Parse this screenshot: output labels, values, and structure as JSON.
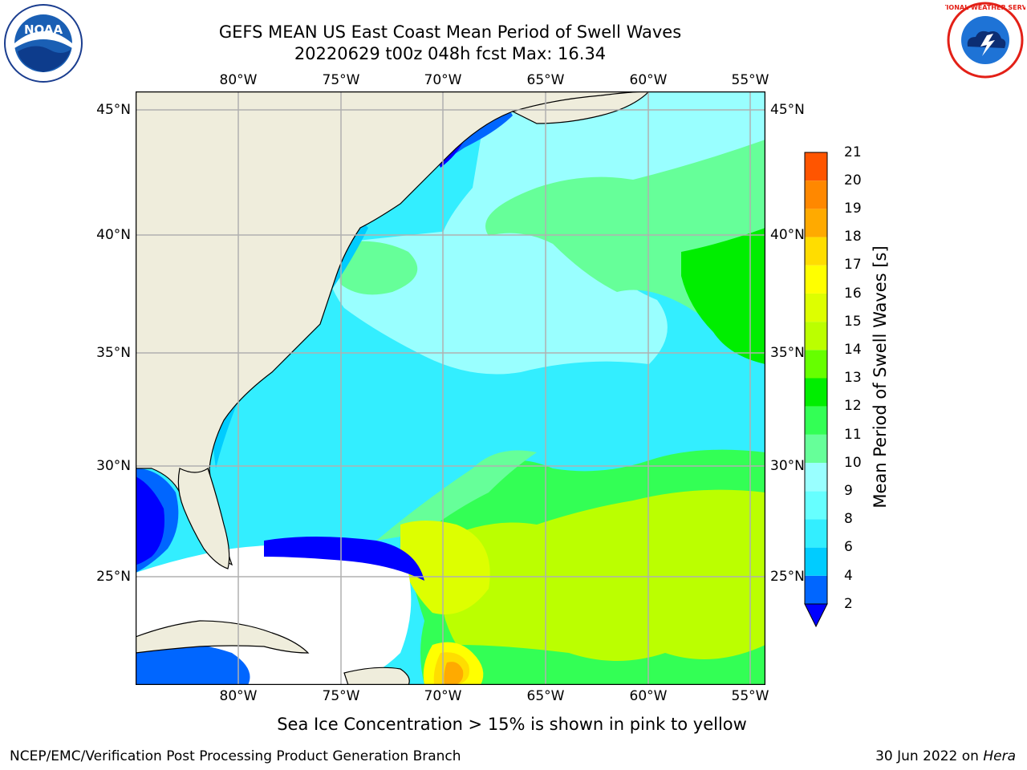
{
  "title": {
    "line1": "GEFS MEAN US East Coast Mean Period of Swell Waves",
    "line2": "20220629 t00z 048h fcst   Max: 16.34"
  },
  "map": {
    "lon_ticks": [
      "80°W",
      "75°W",
      "70°W",
      "65°W",
      "60°W",
      "55°W"
    ],
    "lat_ticks": [
      "45°N",
      "40°N",
      "35°N",
      "30°N",
      "25°N"
    ],
    "land_color": "#efeddc",
    "grid_color": "#b0b0b0"
  },
  "colorbar": {
    "label": "Mean Period of Swell Waves [s]",
    "ticks": [
      "2",
      "4",
      "6",
      "8",
      "9",
      "10",
      "11",
      "12",
      "13",
      "14",
      "15",
      "16",
      "17",
      "18",
      "19",
      "20",
      "21"
    ],
    "colors": [
      "#0066ff",
      "#00ccff",
      "#33eeff",
      "#66ffff",
      "#99ffff",
      "#66ff99",
      "#33ff55",
      "#00ee00",
      "#66ff00",
      "#bbff00",
      "#ddff00",
      "#ffff00",
      "#ffdd00",
      "#ffaa00",
      "#ff8800",
      "#ff5500",
      "#ff2200",
      "#ff0000"
    ],
    "extend_color": "#0000ff"
  },
  "footnote": "Sea Ice Concentration > 15% is shown in pink to yellow",
  "credit": "NCEP/EMC/Verification Post Processing Product Generation Branch",
  "date": {
    "text": "30 Jun 2022 on",
    "system": "Hera"
  },
  "logos": {
    "left": "noaa-logo",
    "right": "national-weather-service-logo",
    "noaa_text": "NOAA",
    "nws_ring_text": "NATIONAL WEATHER SERVICE"
  }
}
